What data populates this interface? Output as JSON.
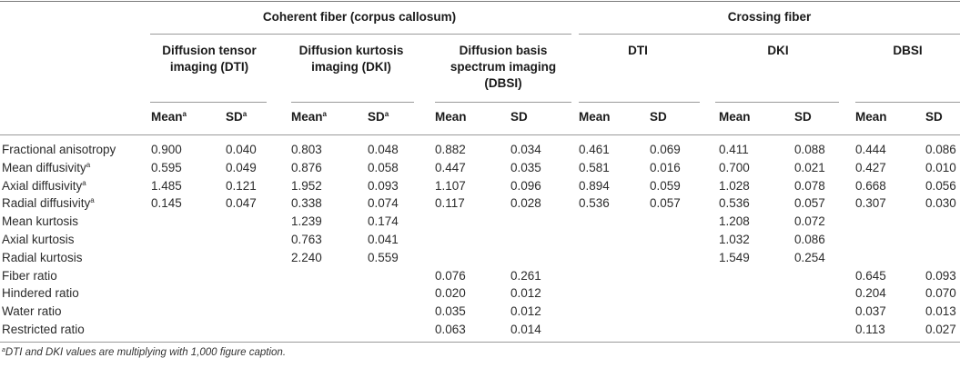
{
  "groups": [
    {
      "label": "Coherent fiber (corpus callosum)"
    },
    {
      "label": "Crossing fiber"
    }
  ],
  "methods": [
    {
      "label": "Diffusion tensor imaging (DTI)"
    },
    {
      "label": "Diffusion kurtosis imaging (DKI)"
    },
    {
      "label": "Diffusion basis spectrum imaging (DBSI)"
    },
    {
      "label": "DTI"
    },
    {
      "label": "DKI"
    },
    {
      "label": "DBSI"
    }
  ],
  "subheaders": [
    {
      "text": "Mean",
      "sup": "a"
    },
    {
      "text": "SD",
      "sup": "a"
    },
    {
      "text": "Mean",
      "sup": "a"
    },
    {
      "text": "SD",
      "sup": "a"
    },
    {
      "text": "Mean",
      "sup": ""
    },
    {
      "text": "SD",
      "sup": ""
    },
    {
      "text": "Mean",
      "sup": ""
    },
    {
      "text": "SD",
      "sup": ""
    },
    {
      "text": "Mean",
      "sup": ""
    },
    {
      "text": "SD",
      "sup": ""
    },
    {
      "text": "Mean",
      "sup": ""
    },
    {
      "text": "SD",
      "sup": ""
    }
  ],
  "rows": [
    {
      "label": "Fractional anisotropy",
      "sup": "",
      "values": [
        "0.900",
        "0.040",
        "0.803",
        "0.048",
        "0.882",
        "0.034",
        "0.461",
        "0.069",
        "0.411",
        "0.088",
        "0.444",
        "0.086"
      ]
    },
    {
      "label": "Mean diffusivity",
      "sup": "a",
      "values": [
        "0.595",
        "0.049",
        "0.876",
        "0.058",
        "0.447",
        "0.035",
        "0.581",
        "0.016",
        "0.700",
        "0.021",
        "0.427",
        "0.010"
      ]
    },
    {
      "label": "Axial diffusivity",
      "sup": "a",
      "values": [
        "1.485",
        "0.121",
        "1.952",
        "0.093",
        "1.107",
        "0.096",
        "0.894",
        "0.059",
        "1.028",
        "0.078",
        "0.668",
        "0.056"
      ]
    },
    {
      "label": "Radial diffusivity",
      "sup": "a",
      "values": [
        "0.145",
        "0.047",
        "0.338",
        "0.074",
        "0.117",
        "0.028",
        "0.536",
        "0.057",
        "0.536",
        "0.057",
        "0.307",
        "0.030"
      ]
    },
    {
      "label": "Mean kurtosis",
      "sup": "",
      "values": [
        "",
        "",
        "1.239",
        "0.174",
        "",
        "",
        "",
        "",
        "1.208",
        "0.072",
        "",
        ""
      ]
    },
    {
      "label": "Axial kurtosis",
      "sup": "",
      "values": [
        "",
        "",
        "0.763",
        "0.041",
        "",
        "",
        "",
        "",
        "1.032",
        "0.086",
        "",
        ""
      ]
    },
    {
      "label": "Radial kurtosis",
      "sup": "",
      "values": [
        "",
        "",
        "2.240",
        "0.559",
        "",
        "",
        "",
        "",
        "1.549",
        "0.254",
        "",
        ""
      ]
    },
    {
      "label": "Fiber ratio",
      "sup": "",
      "values": [
        "",
        "",
        "",
        "",
        "0.076",
        "0.261",
        "",
        "",
        "",
        "",
        "0.645",
        "0.093"
      ]
    },
    {
      "label": "Hindered ratio",
      "sup": "",
      "values": [
        "",
        "",
        "",
        "",
        "0.020",
        "0.012",
        "",
        "",
        "",
        "",
        "0.204",
        "0.070"
      ]
    },
    {
      "label": "Water ratio",
      "sup": "",
      "values": [
        "",
        "",
        "",
        "",
        "0.035",
        "0.012",
        "",
        "",
        "",
        "",
        "0.037",
        "0.013"
      ]
    },
    {
      "label": "Restricted ratio",
      "sup": "",
      "values": [
        "",
        "",
        "",
        "",
        "0.063",
        "0.014",
        "",
        "",
        "",
        "",
        "0.113",
        "0.027"
      ]
    }
  ],
  "footnote": {
    "sup": "a",
    "text": "DTI and DKI values are multiplying with 1,000 figure caption."
  }
}
